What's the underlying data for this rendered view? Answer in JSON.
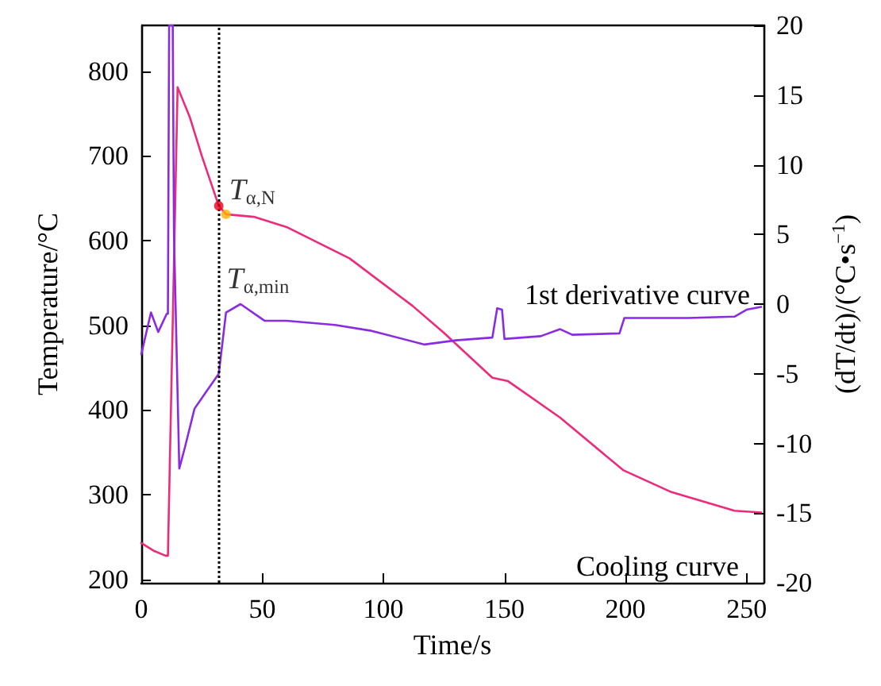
{
  "chart_data": {
    "type": "line",
    "xlabel": "Time/s",
    "ylabel": "Temperature/°C",
    "y2label": "(dT/dt)/(°C•s$^{−1}$)",
    "xlim": [
      0,
      257
    ],
    "xticks": [
      0,
      50,
      100,
      150,
      200,
      250
    ],
    "ylim": [
      196,
      854
    ],
    "yticks": [
      200,
      300,
      400,
      500,
      600,
      700,
      800
    ],
    "y2lim": [
      -20,
      20
    ],
    "y2ticks": [
      -20,
      -15,
      -10,
      -5,
      0,
      5,
      10,
      15,
      20
    ],
    "grid": false,
    "legend": false,
    "marker": "none",
    "line_style": "solid",
    "series": [
      {
        "name": "Cooling curve",
        "color": "#ee2a7b",
        "x": [
          0,
          5,
          10,
          11,
          15,
          20,
          25,
          32,
          35,
          46.5,
          60,
          86,
          112,
          125,
          145,
          151.5,
          173,
          199,
          219,
          245,
          256
        ],
        "values": [
          243,
          234,
          228,
          228,
          781,
          746,
          700,
          641,
          631,
          628,
          616,
          579,
          523,
          491,
          438,
          434,
          391,
          329,
          303,
          281,
          279
        ]
      },
      {
        "name": "1st derivative curve",
        "color": "#8a2be2",
        "axis": "y2",
        "x": [
          0,
          4,
          7,
          10.5,
          11,
          11.5,
          13,
          13.5,
          15.7,
          18,
          22,
          30,
          32,
          35,
          41,
          51,
          60,
          80,
          94.5,
          117,
          130,
          145,
          147,
          149,
          150,
          165,
          173,
          178,
          197.5,
          199.5,
          226,
          245,
          250,
          256
        ],
        "values": [
          -3.6,
          -0.6,
          -2,
          -0.7,
          -0.7,
          20,
          20,
          5,
          -11.8,
          -10.3,
          -7.5,
          -5.5,
          -5,
          -0.6,
          0,
          -1.2,
          -1.2,
          -1.5,
          -1.9,
          -2.9,
          -2.6,
          -2.4,
          -0.3,
          -0.4,
          -2.5,
          -2.3,
          -1.8,
          -2.2,
          -2.1,
          -1,
          -1,
          -0.9,
          -0.4,
          -0.2
        ]
      },
      {
        "type": "scatter",
        "marker": "circle",
        "color": "#e8001c",
        "x": [
          32
        ],
        "values": [
          641
        ]
      },
      {
        "type": "scatter",
        "marker": "circle",
        "color": "#ffb000",
        "x": [
          35
        ],
        "values": [
          631
        ]
      }
    ],
    "ref_lines": [
      {
        "axis": "x",
        "value": 32,
        "line_style": "dotted",
        "color": "#000000"
      }
    ],
    "annotations": [
      {
        "text": "T$_{α,N}$",
        "x": 33,
        "y": 659
      },
      {
        "text": "T$_{α,min}$",
        "x": 32,
        "y": 554
      }
    ]
  }
}
